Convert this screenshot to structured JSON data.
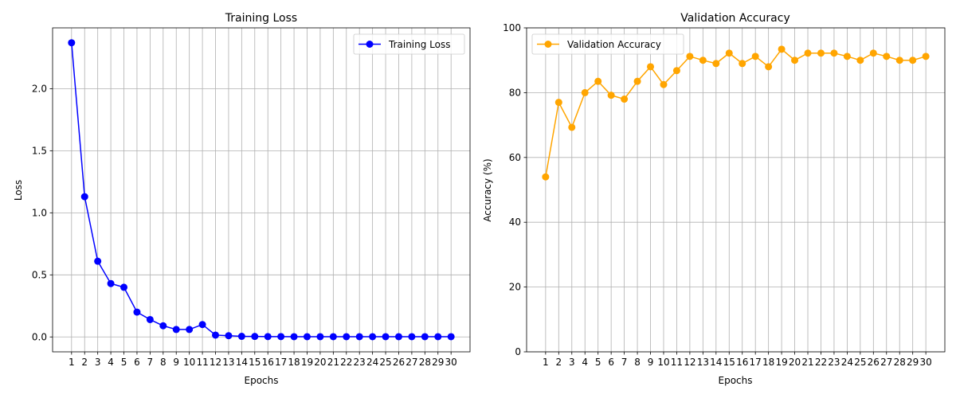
{
  "chart_data": [
    {
      "type": "line",
      "title": "Training Loss",
      "xlabel": "Epochs",
      "ylabel": "Loss",
      "x": [
        1,
        2,
        3,
        4,
        5,
        6,
        7,
        8,
        9,
        10,
        11,
        12,
        13,
        14,
        15,
        16,
        17,
        18,
        19,
        20,
        21,
        22,
        23,
        24,
        25,
        26,
        27,
        28,
        29,
        30
      ],
      "xticks": [
        "1",
        "2",
        "3",
        "4",
        "5",
        "6",
        "7",
        "8",
        "9",
        "10",
        "11",
        "12",
        "13",
        "14",
        "15",
        "16",
        "17",
        "18",
        "19",
        "20",
        "21",
        "22",
        "23",
        "24",
        "25",
        "26",
        "27",
        "28",
        "29",
        "30"
      ],
      "xlim": [
        -0.45,
        31.45
      ],
      "ylim": [
        -0.12,
        2.49
      ],
      "yticks": [
        0.0,
        0.5,
        1.0,
        1.5,
        2.0
      ],
      "ytick_labels": [
        "0.0",
        "0.5",
        "1.0",
        "1.5",
        "2.0"
      ],
      "grid": true,
      "legend": "upper-right",
      "series": [
        {
          "name": "Training Loss",
          "color": "#0000ff",
          "marker": "circle",
          "values": [
            2.37,
            1.13,
            0.61,
            0.43,
            0.4,
            0.2,
            0.14,
            0.09,
            0.06,
            0.06,
            0.1,
            0.015,
            0.01,
            0.005,
            0.004,
            0.003,
            0.003,
            0.002,
            0.002,
            0.002,
            0.002,
            0.002,
            0.002,
            0.002,
            0.002,
            0.002,
            0.002,
            0.002,
            0.002,
            0.002
          ]
        }
      ]
    },
    {
      "type": "line",
      "title": "Validation Accuracy",
      "xlabel": "Epochs",
      "ylabel": "Accuracy (%)",
      "x": [
        1,
        2,
        3,
        4,
        5,
        6,
        7,
        8,
        9,
        10,
        11,
        12,
        13,
        14,
        15,
        16,
        17,
        18,
        19,
        20,
        21,
        22,
        23,
        24,
        25,
        26,
        27,
        28,
        29,
        30
      ],
      "xticks": [
        "1",
        "2",
        "3",
        "4",
        "5",
        "6",
        "7",
        "8",
        "9",
        "10",
        "11",
        "12",
        "13",
        "14",
        "15",
        "16",
        "17",
        "18",
        "19",
        "20",
        "21",
        "22",
        "23",
        "24",
        "25",
        "26",
        "27",
        "28",
        "29",
        "30"
      ],
      "xlim": [
        -0.45,
        31.45
      ],
      "ylim": [
        0,
        100
      ],
      "yticks": [
        0,
        20,
        40,
        60,
        80,
        100
      ],
      "ytick_labels": [
        "0",
        "20",
        "40",
        "60",
        "80",
        "100"
      ],
      "grid": true,
      "legend": "upper-left",
      "series": [
        {
          "name": "Validation Accuracy",
          "color": "#ffa500",
          "marker": "circle",
          "values": [
            54,
            77,
            69.3,
            80,
            83.5,
            79.2,
            78,
            83.5,
            88,
            82.5,
            86.8,
            91.2,
            90,
            89,
            92.2,
            89,
            91.2,
            88,
            93.4,
            90,
            92.2,
            92.2,
            92.2,
            91.2,
            90,
            92.2,
            91.2,
            90,
            90,
            91.2
          ]
        }
      ]
    }
  ]
}
